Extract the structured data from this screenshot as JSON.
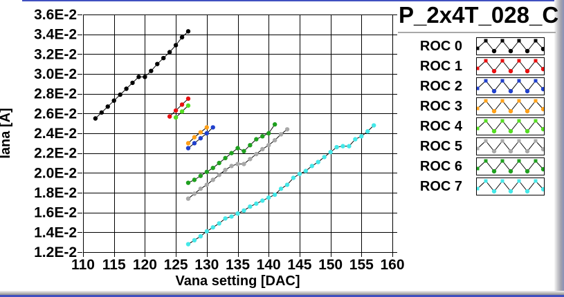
{
  "panel": {
    "accent_border_color": "#4050c0",
    "background_color": "#ffffff"
  },
  "chart_data": {
    "type": "line",
    "title": "P_2x4T_028_C",
    "xlabel": "Vana setting [DAC]",
    "ylabel": "Iana [A]",
    "xlim": [
      110,
      160
    ],
    "ylim": [
      0.012,
      0.036
    ],
    "grid": true,
    "legend_position": "right",
    "xticks": [
      110,
      115,
      120,
      125,
      130,
      135,
      140,
      145,
      150,
      155,
      160
    ],
    "yticks": {
      "values": [
        0.036,
        0.034,
        0.032,
        0.03,
        0.028,
        0.026,
        0.024,
        0.022,
        0.02,
        0.018,
        0.016,
        0.014,
        0.012
      ],
      "labels": [
        "3.6E-2",
        "3.4E-2",
        "3.2E-2",
        "3.0E-2",
        "2.8E-2",
        "2.6E-2",
        "2.4E-2",
        "2.2E-2",
        "2.0E-2",
        "1.8E-2",
        "1.6E-2",
        "1.4E-2",
        "1.2E-2"
      ]
    },
    "line_color": "#000000",
    "series": [
      {
        "name": "ROC 0",
        "color": "#000000",
        "x": [
          112,
          113,
          114,
          115,
          116,
          117,
          118,
          119,
          120,
          121,
          122,
          123,
          124,
          125,
          126,
          127
        ],
        "y": [
          0.0255,
          0.0261,
          0.0267,
          0.0273,
          0.0279,
          0.0285,
          0.0291,
          0.0297,
          0.0297,
          0.0303,
          0.031,
          0.0316,
          0.0322,
          0.0329,
          0.0337,
          0.0343
        ]
      },
      {
        "name": "ROC 1",
        "color": "#e81010",
        "x": [
          124,
          125,
          126,
          127
        ],
        "y": [
          0.0257,
          0.0263,
          0.0269,
          0.0275
        ]
      },
      {
        "name": "ROC 2",
        "color": "#2040cc",
        "x": [
          127,
          128,
          129,
          130,
          131
        ],
        "y": [
          0.0225,
          0.023,
          0.0235,
          0.024,
          0.0246
        ]
      },
      {
        "name": "ROC 3",
        "color": "#ffa018",
        "x": [
          127,
          128,
          129,
          130
        ],
        "y": [
          0.023,
          0.0236,
          0.0241,
          0.0246
        ]
      },
      {
        "name": "ROC 4",
        "color": "#55dd22",
        "x": [
          125,
          126,
          127
        ],
        "y": [
          0.0256,
          0.0262,
          0.0268
        ]
      },
      {
        "name": "ROC 5",
        "color": "#a8a8a8",
        "x": [
          127,
          128,
          129,
          130,
          131,
          132,
          133,
          134,
          135,
          136,
          137,
          138,
          139,
          140,
          141,
          142,
          143
        ],
        "y": [
          0.0174,
          0.0179,
          0.0184,
          0.0188,
          0.0193,
          0.0198,
          0.0203,
          0.0207,
          0.0209,
          0.0209,
          0.0214,
          0.0219,
          0.0224,
          0.0228,
          0.0233,
          0.0239,
          0.0244
        ]
      },
      {
        "name": "ROC 6",
        "color": "#1fa01f",
        "x": [
          127,
          128,
          129,
          130,
          131,
          132,
          133,
          134,
          135,
          136,
          137,
          138,
          139,
          140,
          141
        ],
        "y": [
          0.019,
          0.0193,
          0.0197,
          0.0201,
          0.0205,
          0.021,
          0.0215,
          0.022,
          0.0225,
          0.0222,
          0.0228,
          0.0234,
          0.0237,
          0.024,
          0.0249
        ]
      },
      {
        "name": "ROC 7",
        "color": "#44e8e8",
        "x": [
          127,
          128,
          129,
          130,
          131,
          132,
          133,
          134,
          135,
          136,
          137,
          138,
          139,
          140,
          141,
          142,
          143,
          144,
          145,
          146,
          147,
          148,
          149,
          150,
          151,
          152,
          153,
          154,
          155,
          156,
          157
        ],
        "y": [
          0.0128,
          0.0132,
          0.0136,
          0.0141,
          0.0145,
          0.0149,
          0.0154,
          0.0156,
          0.0159,
          0.0162,
          0.0166,
          0.0169,
          0.0172,
          0.0175,
          0.0178,
          0.0184,
          0.0188,
          0.0195,
          0.0199,
          0.0202,
          0.0207,
          0.0211,
          0.0216,
          0.0221,
          0.0226,
          0.0227,
          0.0227,
          0.0234,
          0.0237,
          0.0242,
          0.0248
        ]
      }
    ]
  },
  "legend": {
    "items": [
      {
        "label": "ROC 0"
      },
      {
        "label": "ROC 1"
      },
      {
        "label": "ROC 2"
      },
      {
        "label": "ROC 3"
      },
      {
        "label": "ROC 4"
      },
      {
        "label": "ROC 5"
      },
      {
        "label": "ROC 6"
      },
      {
        "label": "ROC 7"
      }
    ]
  }
}
